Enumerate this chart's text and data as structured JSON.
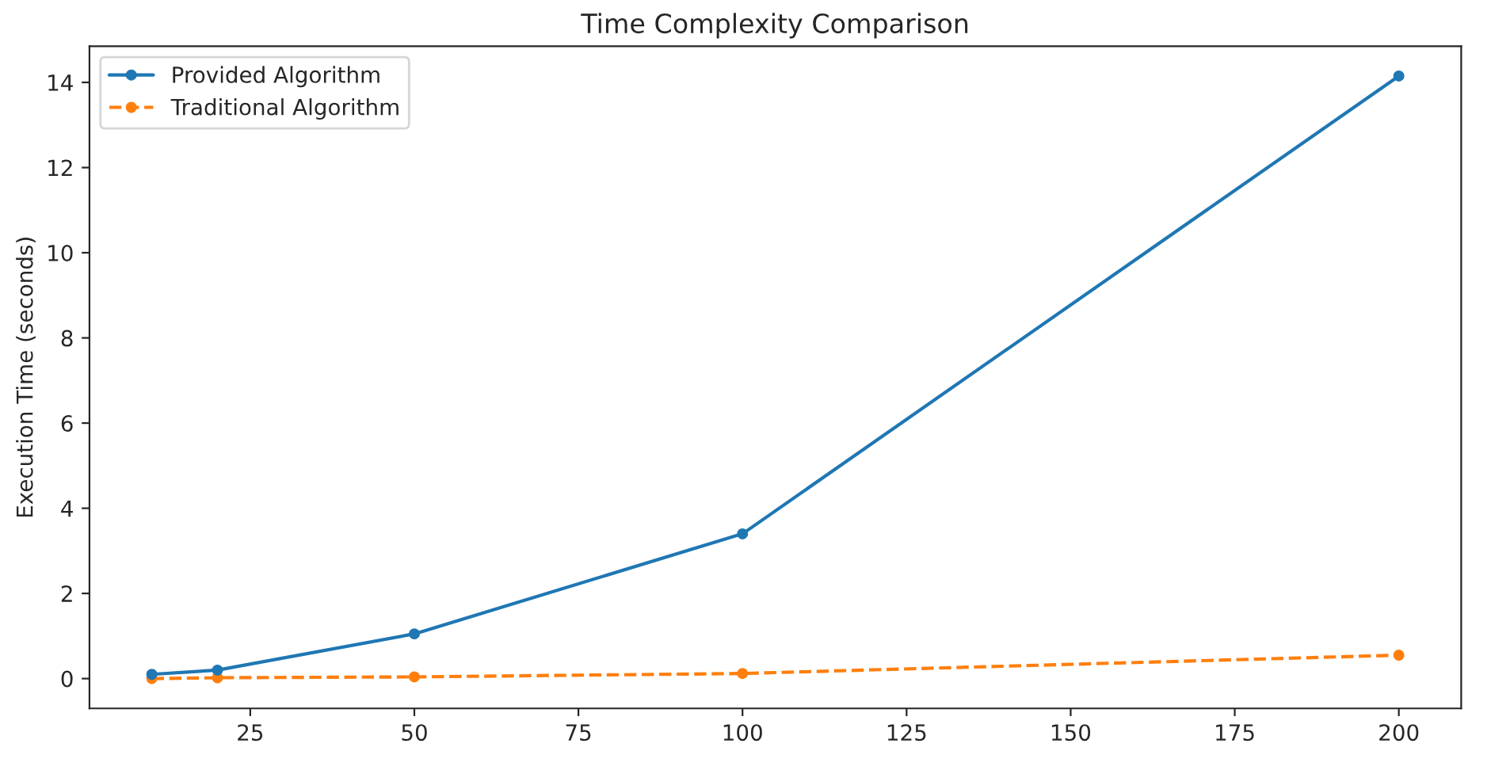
{
  "chart_data": {
    "type": "line",
    "title": "Time Complexity Comparison",
    "ylabel": "Execution Time (seconds)",
    "x": [
      10,
      20,
      50,
      100,
      200
    ],
    "series": [
      {
        "name": "Provided Algorithm",
        "color": "#1f77b4",
        "values": [
          0.1,
          0.2,
          1.05,
          3.4,
          14.15
        ],
        "line_style": "solid"
      },
      {
        "name": "Traditional Algorithm",
        "color": "#ff7f0e",
        "values": [
          0.0,
          0.02,
          0.04,
          0.12,
          0.55
        ],
        "line_style": "dashed"
      }
    ],
    "xlim": [
      0.5,
      209.5
    ],
    "xticks": [
      25,
      50,
      75,
      100,
      125,
      150,
      175,
      200
    ],
    "ylim": [
      -0.7,
      14.85
    ],
    "yticks": [
      0,
      2,
      4,
      6,
      8,
      10,
      12,
      14
    ],
    "marker": "circle",
    "legend": "top left",
    "grid": false
  }
}
